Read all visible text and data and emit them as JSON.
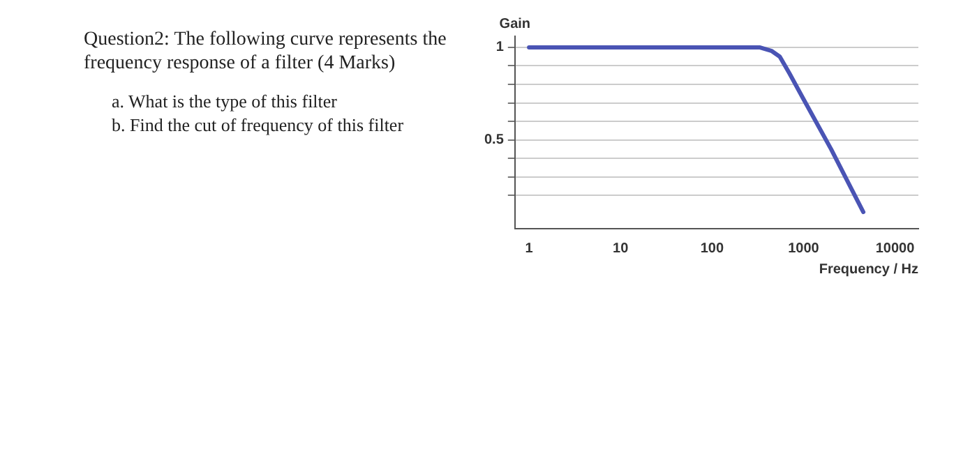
{
  "chart_data": {
    "type": "line",
    "title": "Question2: The following curve represents the frequency response of a filter (4 Marks)",
    "annotations": [
      "a. What is the type of this filter",
      "b. Find the cut of frequency of this filter"
    ],
    "xlabel": "Frequency / Hz",
    "ylabel": "Gain",
    "series": [
      {
        "color": "#4a54b4",
        "x": [
          1,
          330,
          450,
          550,
          700,
          1000,
          2000,
          4500
        ],
        "values": [
          1,
          1,
          0.98,
          0.95,
          0.86,
          0.72,
          0.45,
          0.11
        ]
      }
    ],
    "log": "x",
    "xlim": [
      0.7,
      18000
    ],
    "xticks": [
      1,
      10,
      100,
      1000,
      10000
    ],
    "ylim": [
      0.02,
      1.06
    ],
    "yticks": [
      {
        "value": 0.2,
        "label": null
      },
      {
        "value": 0.3,
        "label": null
      },
      {
        "value": 0.4,
        "label": null
      },
      0.5,
      {
        "value": 0.6,
        "label": null
      },
      {
        "value": 0.7,
        "label": null
      },
      {
        "value": 0.8,
        "label": null
      },
      {
        "value": 0.9,
        "label": null
      },
      1
    ],
    "grid": "y",
    "legend": false,
    "marker": "none",
    "line_style": "solid"
  }
}
